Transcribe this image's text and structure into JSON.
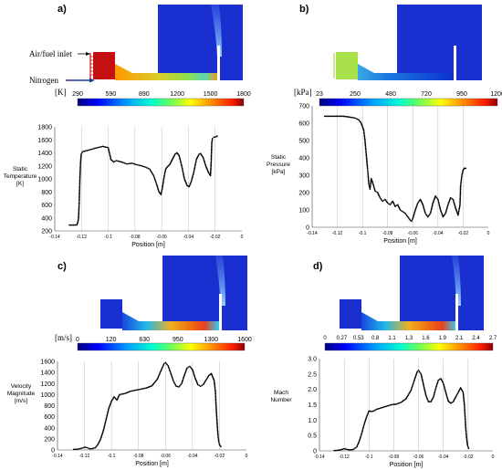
{
  "panels": {
    "a": {
      "label": "a)",
      "legend_labels": [
        "Air/fuel inlet",
        "Nitrogen"
      ],
      "colorbar": {
        "unit": "[K]",
        "ticks": [
          "290",
          "590",
          "890",
          "1200",
          "1500",
          "1800"
        ]
      },
      "chart": {
        "ylabel": [
          "Static",
          "Temperature",
          "[K]"
        ],
        "xlabel": "Position [m]"
      }
    },
    "b": {
      "label": "b)",
      "colorbar": {
        "unit": "[kPa]",
        "ticks": [
          "23",
          "250",
          "480",
          "720",
          "950",
          "1200"
        ]
      },
      "chart": {
        "ylabel": [
          "Static",
          "Pressure",
          "[kPa]"
        ],
        "xlabel": "Position [m]"
      }
    },
    "c": {
      "label": "c)",
      "colorbar": {
        "unit": "[m/s]",
        "ticks": [
          "0",
          "120",
          "630",
          "950",
          "1300",
          "1600"
        ]
      },
      "chart": {
        "ylabel": [
          "Velocity",
          "Magnitude",
          "[m/s]"
        ],
        "xlabel": "Position [m]"
      }
    },
    "d": {
      "label": "d)",
      "colorbar": {
        "unit": "",
        "ticks": [
          "0",
          "0.27",
          "0.53",
          "0.8",
          "1.1",
          "1.3",
          "1.6",
          "1.9",
          "2.1",
          "2.4",
          "2.7"
        ]
      },
      "chart": {
        "ylabel": [
          "Mach",
          "Number"
        ],
        "xlabel": "Position [m]"
      }
    }
  },
  "chart_data": [
    {
      "type": "scatter",
      "xlabel": "Position [m]",
      "ylabel": "Static Temperature [K]",
      "xlim": [
        -0.14,
        0
      ],
      "ylim": [
        200,
        1800
      ],
      "xticks": [
        -0.14,
        -0.12,
        -0.1,
        -0.08,
        -0.06,
        -0.04,
        -0.02,
        0
      ],
      "yticks": [
        200,
        400,
        600,
        800,
        1000,
        1200,
        1400,
        1600,
        1800
      ],
      "points": [
        [
          -0.129,
          290
        ],
        [
          -0.126,
          290
        ],
        [
          -0.1235,
          292
        ],
        [
          -0.1228,
          330
        ],
        [
          -0.1222,
          400
        ],
        [
          -0.1217,
          650
        ],
        [
          -0.1212,
          1000
        ],
        [
          -0.1207,
          1250
        ],
        [
          -0.1202,
          1380
        ],
        [
          -0.119,
          1420
        ],
        [
          -0.115,
          1440
        ],
        [
          -0.11,
          1470
        ],
        [
          -0.104,
          1500
        ],
        [
          -0.1,
          1480
        ],
        [
          -0.098,
          1300
        ],
        [
          -0.096,
          1260
        ],
        [
          -0.094,
          1280
        ],
        [
          -0.09,
          1260
        ],
        [
          -0.086,
          1230
        ],
        [
          -0.082,
          1240
        ],
        [
          -0.079,
          1220
        ],
        [
          -0.075,
          1200
        ],
        [
          -0.072,
          1180
        ],
        [
          -0.069,
          1150
        ],
        [
          -0.066,
          1050
        ],
        [
          -0.064,
          930
        ],
        [
          -0.062,
          800
        ],
        [
          -0.0605,
          760
        ],
        [
          -0.0595,
          860
        ],
        [
          -0.058,
          1050
        ],
        [
          -0.057,
          1150
        ],
        [
          -0.056,
          1180
        ],
        [
          -0.054,
          1220
        ],
        [
          -0.052,
          1300
        ],
        [
          -0.05,
          1380
        ],
        [
          -0.0485,
          1400
        ],
        [
          -0.047,
          1360
        ],
        [
          -0.045,
          1200
        ],
        [
          -0.043,
          1000
        ],
        [
          -0.041,
          900
        ],
        [
          -0.0395,
          880
        ],
        [
          -0.038,
          950
        ],
        [
          -0.036,
          1100
        ],
        [
          -0.034,
          1300
        ],
        [
          -0.032,
          1380
        ],
        [
          -0.031,
          1390
        ],
        [
          -0.029,
          1330
        ],
        [
          -0.027,
          1200
        ],
        [
          -0.025,
          1100
        ],
        [
          -0.0235,
          1050
        ],
        [
          -0.023,
          1240
        ],
        [
          -0.0225,
          1560
        ],
        [
          -0.022,
          1620
        ],
        [
          -0.021,
          1640
        ],
        [
          -0.019,
          1650
        ],
        [
          -0.0185,
          1660
        ]
      ]
    },
    {
      "type": "scatter",
      "xlabel": "Position [m]",
      "ylabel": "Static Pressure [kPa]",
      "xlim": [
        -0.14,
        0
      ],
      "ylim": [
        0,
        700
      ],
      "xticks": [
        -0.14,
        -0.12,
        -0.1,
        -0.08,
        -0.06,
        -0.04,
        -0.02,
        0
      ],
      "yticks": [
        0,
        100,
        200,
        300,
        400,
        500,
        600,
        700
      ],
      "points": [
        [
          -0.13,
          640
        ],
        [
          -0.125,
          640
        ],
        [
          -0.12,
          640
        ],
        [
          -0.115,
          640
        ],
        [
          -0.11,
          635
        ],
        [
          -0.106,
          630
        ],
        [
          -0.103,
          620
        ],
        [
          -0.101,
          600
        ],
        [
          -0.099,
          560
        ],
        [
          -0.098,
          500
        ],
        [
          -0.097,
          420
        ],
        [
          -0.096,
          340
        ],
        [
          -0.0955,
          300
        ],
        [
          -0.095,
          250
        ],
        [
          -0.094,
          220
        ],
        [
          -0.093,
          280
        ],
        [
          -0.092,
          260
        ],
        [
          -0.09,
          210
        ],
        [
          -0.088,
          200
        ],
        [
          -0.086,
          170
        ],
        [
          -0.084,
          150
        ],
        [
          -0.082,
          160
        ],
        [
          -0.08,
          140
        ],
        [
          -0.078,
          130
        ],
        [
          -0.076,
          150
        ],
        [
          -0.074,
          120
        ],
        [
          -0.072,
          130
        ],
        [
          -0.07,
          100
        ],
        [
          -0.068,
          90
        ],
        [
          -0.066,
          80
        ],
        [
          -0.064,
          60
        ],
        [
          -0.062,
          40
        ],
        [
          -0.061,
          35
        ],
        [
          -0.06,
          50
        ],
        [
          -0.058,
          100
        ],
        [
          -0.056,
          140
        ],
        [
          -0.054,
          160
        ],
        [
          -0.052,
          130
        ],
        [
          -0.05,
          80
        ],
        [
          -0.048,
          60
        ],
        [
          -0.046,
          80
        ],
        [
          -0.044,
          140
        ],
        [
          -0.042,
          180
        ],
        [
          -0.04,
          160
        ],
        [
          -0.038,
          100
        ],
        [
          -0.036,
          60
        ],
        [
          -0.034,
          80
        ],
        [
          -0.032,
          130
        ],
        [
          -0.03,
          170
        ],
        [
          -0.028,
          160
        ],
        [
          -0.026,
          110
        ],
        [
          -0.024,
          70
        ],
        [
          -0.0225,
          130
        ],
        [
          -0.022,
          240
        ],
        [
          -0.021,
          300
        ],
        [
          -0.02,
          330
        ],
        [
          -0.019,
          340
        ],
        [
          -0.018,
          340
        ]
      ]
    },
    {
      "type": "scatter",
      "xlabel": "Position [m]",
      "ylabel": "Velocity Magnitude [m/s]",
      "xlim": [
        -0.14,
        0
      ],
      "ylim": [
        0,
        1600
      ],
      "xticks": [
        -0.14,
        -0.12,
        -0.1,
        -0.08,
        -0.06,
        -0.04,
        -0.02,
        0
      ],
      "yticks": [
        0,
        200,
        400,
        600,
        800,
        1000,
        1200,
        1400,
        1600
      ],
      "points": [
        [
          -0.128,
          10
        ],
        [
          -0.125,
          15
        ],
        [
          -0.122,
          30
        ],
        [
          -0.12,
          50
        ],
        [
          -0.118,
          40
        ],
        [
          -0.116,
          20
        ],
        [
          -0.114,
          25
        ],
        [
          -0.112,
          40
        ],
        [
          -0.11,
          100
        ],
        [
          -0.108,
          200
        ],
        [
          -0.106,
          350
        ],
        [
          -0.104,
          550
        ],
        [
          -0.102,
          750
        ],
        [
          -0.1,
          880
        ],
        [
          -0.098,
          960
        ],
        [
          -0.096,
          900
        ],
        [
          -0.094,
          1000
        ],
        [
          -0.09,
          1020
        ],
        [
          -0.086,
          1060
        ],
        [
          -0.082,
          1080
        ],
        [
          -0.078,
          1100
        ],
        [
          -0.074,
          1120
        ],
        [
          -0.07,
          1160
        ],
        [
          -0.066,
          1280
        ],
        [
          -0.063,
          1450
        ],
        [
          -0.061,
          1560
        ],
        [
          -0.06,
          1580
        ],
        [
          -0.058,
          1520
        ],
        [
          -0.056,
          1380
        ],
        [
          -0.054,
          1240
        ],
        [
          -0.052,
          1150
        ],
        [
          -0.05,
          1140
        ],
        [
          -0.048,
          1200
        ],
        [
          -0.046,
          1350
        ],
        [
          -0.044,
          1480
        ],
        [
          -0.042,
          1510
        ],
        [
          -0.04,
          1450
        ],
        [
          -0.038,
          1300
        ],
        [
          -0.036,
          1180
        ],
        [
          -0.034,
          1150
        ],
        [
          -0.032,
          1180
        ],
        [
          -0.03,
          1260
        ],
        [
          -0.028,
          1340
        ],
        [
          -0.026,
          1380
        ],
        [
          -0.024,
          1260
        ],
        [
          -0.023,
          1060
        ],
        [
          -0.0225,
          800
        ],
        [
          -0.022,
          600
        ],
        [
          -0.0215,
          400
        ],
        [
          -0.021,
          250
        ],
        [
          -0.0205,
          150
        ],
        [
          -0.02,
          100
        ],
        [
          -0.0195,
          80
        ],
        [
          -0.019,
          60
        ]
      ]
    },
    {
      "type": "scatter",
      "xlabel": "Position [m]",
      "ylabel": "Mach Number",
      "xlim": [
        -0.14,
        0
      ],
      "ylim": [
        0,
        3.0
      ],
      "xticks": [
        -0.14,
        -0.12,
        -0.1,
        -0.08,
        -0.06,
        -0.04,
        -0.02,
        0
      ],
      "yticks": [
        0,
        0.5,
        1.0,
        1.5,
        2.0,
        2.5,
        3.0
      ],
      "points": [
        [
          -0.128,
          0.01
        ],
        [
          -0.125,
          0.02
        ],
        [
          -0.122,
          0.04
        ],
        [
          -0.12,
          0.07
        ],
        [
          -0.118,
          0.05
        ],
        [
          -0.116,
          0.03
        ],
        [
          -0.113,
          0.04
        ],
        [
          -0.11,
          0.12
        ],
        [
          -0.108,
          0.3
        ],
        [
          -0.106,
          0.55
        ],
        [
          -0.104,
          0.85
        ],
        [
          -0.102,
          1.1
        ],
        [
          -0.1,
          1.3
        ],
        [
          -0.098,
          1.28
        ],
        [
          -0.096,
          1.3
        ],
        [
          -0.094,
          1.35
        ],
        [
          -0.09,
          1.4
        ],
        [
          -0.086,
          1.45
        ],
        [
          -0.082,
          1.5
        ],
        [
          -0.078,
          1.52
        ],
        [
          -0.074,
          1.58
        ],
        [
          -0.07,
          1.7
        ],
        [
          -0.066,
          1.98
        ],
        [
          -0.063,
          2.35
        ],
        [
          -0.061,
          2.58
        ],
        [
          -0.06,
          2.62
        ],
        [
          -0.058,
          2.5
        ],
        [
          -0.056,
          2.15
        ],
        [
          -0.054,
          1.8
        ],
        [
          -0.052,
          1.6
        ],
        [
          -0.05,
          1.6
        ],
        [
          -0.048,
          1.75
        ],
        [
          -0.046,
          2.05
        ],
        [
          -0.044,
          2.3
        ],
        [
          -0.042,
          2.35
        ],
        [
          -0.04,
          2.2
        ],
        [
          -0.038,
          1.9
        ],
        [
          -0.036,
          1.62
        ],
        [
          -0.034,
          1.55
        ],
        [
          -0.032,
          1.6
        ],
        [
          -0.03,
          1.75
        ],
        [
          -0.028,
          1.9
        ],
        [
          -0.026,
          2.05
        ],
        [
          -0.024,
          1.9
        ],
        [
          -0.023,
          1.5
        ],
        [
          -0.0225,
          1.15
        ],
        [
          -0.022,
          0.8
        ],
        [
          -0.0215,
          0.55
        ],
        [
          -0.021,
          0.35
        ],
        [
          -0.0205,
          0.2
        ],
        [
          -0.02,
          0.12
        ],
        [
          -0.0195,
          0.08
        ]
      ]
    }
  ],
  "colors": {
    "dots": "#000000",
    "gridline": "#bdbdbd",
    "chamber": "#1020c8",
    "nitrogen_arrow": "#1e3a8a"
  }
}
